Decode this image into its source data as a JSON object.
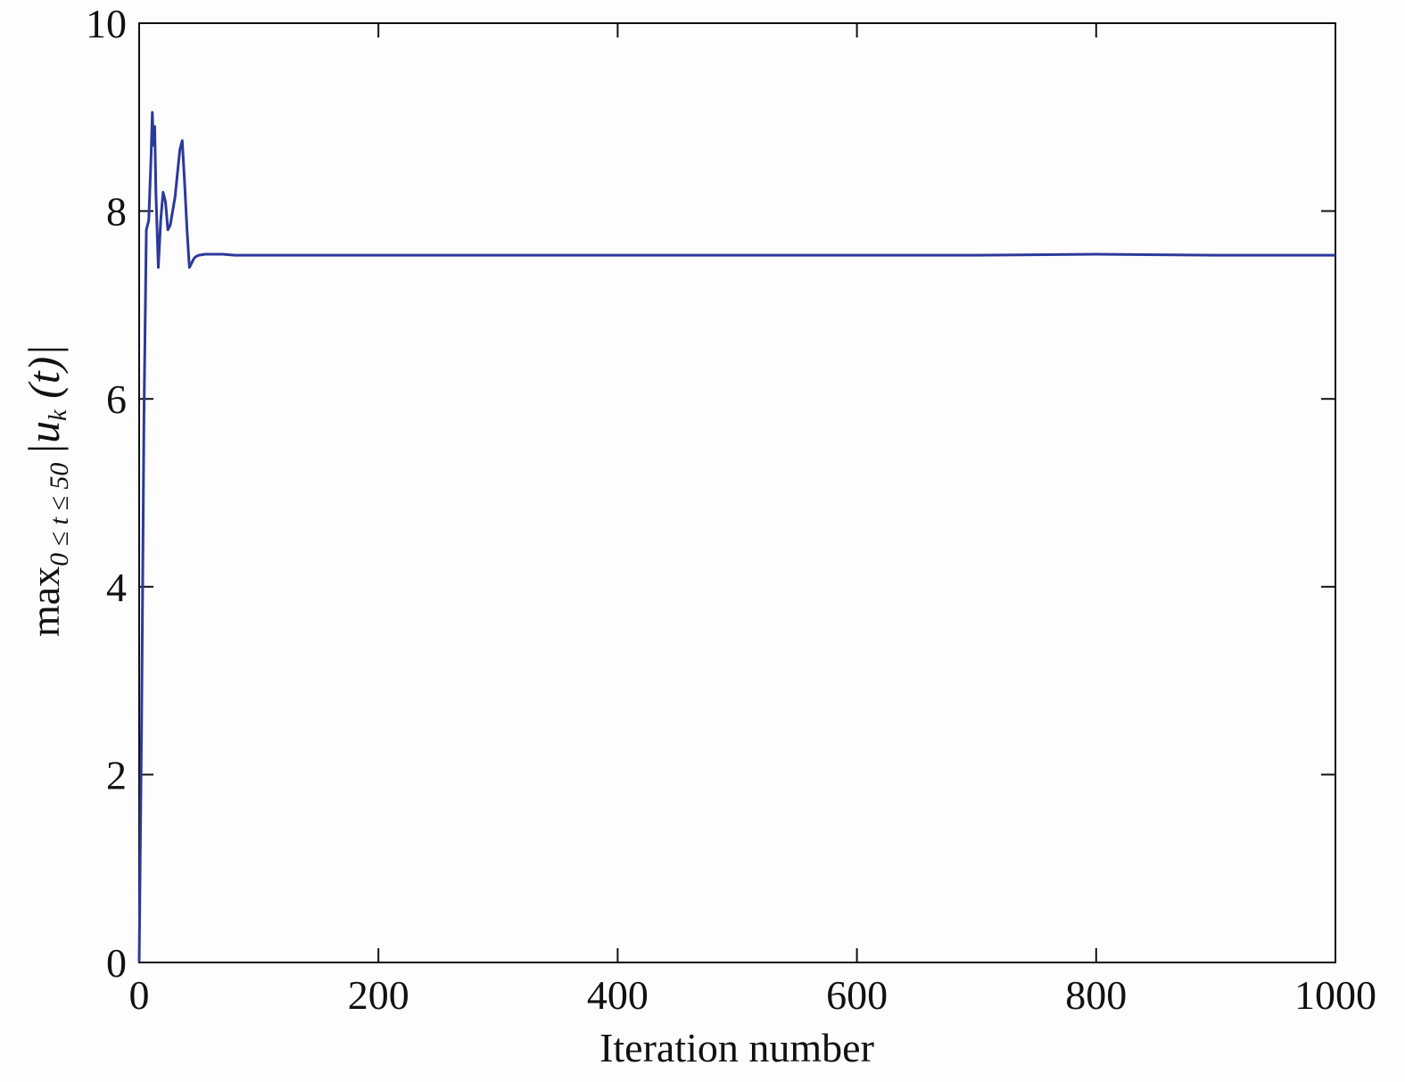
{
  "chart_data": {
    "type": "line",
    "title": "",
    "xlabel": "Iteration number",
    "ylabel": {
      "prefix": "max",
      "subscript": "0 ≤ t ≤ 50",
      "body_open": "|u",
      "body_sub": "k",
      "body_close": " (t)|"
    },
    "xlim": [
      0,
      1000
    ],
    "ylim": [
      0,
      10
    ],
    "xticks": [
      "0",
      "200",
      "400",
      "600",
      "800",
      "1000"
    ],
    "yticks": [
      "0",
      "2",
      "4",
      "6",
      "8",
      "10"
    ],
    "grid": false,
    "series": [
      {
        "color": "#2b3a9a",
        "x": [
          0,
          2,
          4,
          6,
          8,
          10,
          11,
          12,
          13,
          14,
          16,
          18,
          20,
          22,
          24,
          26,
          28,
          30,
          32,
          34,
          36,
          38,
          40,
          42,
          44,
          46,
          48,
          50,
          55,
          60,
          70,
          80,
          100,
          150,
          200,
          300,
          400,
          500,
          600,
          700,
          800,
          900,
          950,
          1000
        ],
        "y": [
          0.0,
          2.5,
          5.8,
          7.8,
          7.9,
          8.6,
          9.05,
          8.7,
          8.9,
          8.2,
          7.4,
          7.9,
          8.2,
          8.1,
          7.8,
          7.85,
          8.0,
          8.15,
          8.4,
          8.65,
          8.75,
          8.3,
          7.8,
          7.4,
          7.45,
          7.5,
          7.52,
          7.53,
          7.54,
          7.54,
          7.54,
          7.53,
          7.53,
          7.53,
          7.53,
          7.53,
          7.53,
          7.53,
          7.53,
          7.53,
          7.54,
          7.53,
          7.53,
          7.53
        ]
      }
    ]
  }
}
